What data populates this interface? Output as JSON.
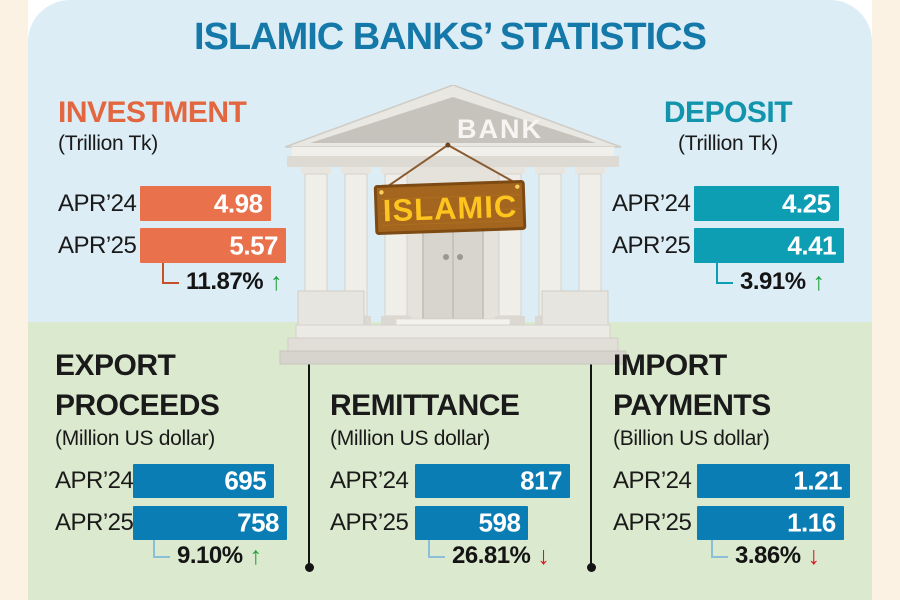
{
  "page": {
    "title": "ISLAMIC BANKS’ STATISTICS"
  },
  "theme": {
    "frame": "#FCF2E3",
    "top_panel": "#DCEDF6",
    "bottom_panel": "#DBE9CF",
    "title_color": "#1478A8",
    "up": "#1FA33C",
    "down": "#D8171E"
  },
  "building": {
    "pediment_text": "BANK",
    "sign_text": "ISLAMIC",
    "sign_bg": "#A4661E",
    "sign_text_color": "#FFC51F"
  },
  "chart_data": [
    {
      "type": "bar",
      "title_lines": [
        "INVESTMENT"
      ],
      "unit": "(Trillion Tk)",
      "categories": [
        "APR’24",
        "APR’25"
      ],
      "values": [
        4.98,
        5.57
      ],
      "value_labels": [
        "4.98",
        "5.57"
      ],
      "xlim": [
        0,
        5.57
      ],
      "bar_color": "#E9714C",
      "title_color": "#E26740",
      "connector_color": "#C7502B",
      "change": "11.87%",
      "change_arrow": "↑",
      "change_direction": "up",
      "change_color": "#1FA33C"
    },
    {
      "type": "bar",
      "title_lines": [
        "DEPOSIT"
      ],
      "unit": "(Trillion Tk)",
      "categories": [
        "APR’24",
        "APR’25"
      ],
      "values": [
        4.25,
        4.41
      ],
      "value_labels": [
        "4.25",
        "4.41"
      ],
      "xlim": [
        0,
        4.41
      ],
      "bar_color": "#0D9EB4",
      "title_color": "#1295AC",
      "connector_color": "#0D9EB4",
      "change": "3.91%",
      "change_arrow": "↑",
      "change_direction": "up",
      "change_color": "#1FA33C"
    },
    {
      "type": "bar",
      "title_lines": [
        "EXPORT",
        "PROCEEDS"
      ],
      "unit": "(Million US dollar)",
      "categories": [
        "APR’24",
        "APR’25"
      ],
      "values": [
        695,
        758
      ],
      "value_labels": [
        "695",
        "758"
      ],
      "xlim": [
        0,
        758
      ],
      "bar_color": "#0A7DB5",
      "title_color": "#1A1A1A",
      "connector_color": "#8BBFD9",
      "change": "9.10%",
      "change_arrow": "↑",
      "change_direction": "up",
      "change_color": "#1FA33C"
    },
    {
      "type": "bar",
      "title_lines": [
        "REMITTANCE"
      ],
      "unit": "(Million US dollar)",
      "categories": [
        "APR’24",
        "APR’25"
      ],
      "values": [
        817,
        598
      ],
      "value_labels": [
        "817",
        "598"
      ],
      "xlim": [
        0,
        817
      ],
      "bar_color": "#0A7DB5",
      "title_color": "#1A1A1A",
      "connector_color": "#8BBFD9",
      "change": "26.81%",
      "change_arrow": "↓",
      "change_direction": "down",
      "change_color": "#D8171E"
    },
    {
      "type": "bar",
      "title_lines": [
        "IMPORT",
        "PAYMENTS"
      ],
      "unit": "(Billion US dollar)",
      "categories": [
        "APR’24",
        "APR’25"
      ],
      "values": [
        1.21,
        1.16
      ],
      "value_labels": [
        "1.21",
        "1.16"
      ],
      "xlim": [
        0,
        1.21
      ],
      "bar_color": "#0A7DB5",
      "title_color": "#1A1A1A",
      "connector_color": "#8BBFD9",
      "change": "3.86%",
      "change_arrow": "↓",
      "change_direction": "down",
      "change_color": "#D8171E"
    }
  ]
}
